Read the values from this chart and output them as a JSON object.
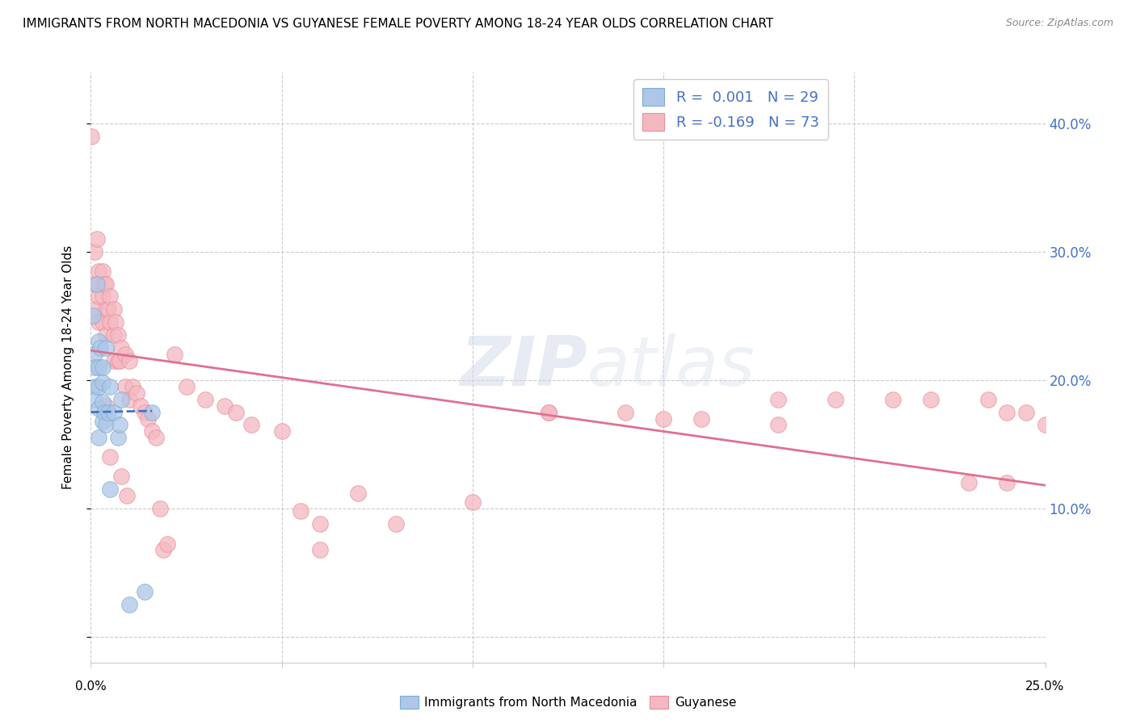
{
  "title": "IMMIGRANTS FROM NORTH MACEDONIA VS GUYANESE FEMALE POVERTY AMONG 18-24 YEAR OLDS CORRELATION CHART",
  "source": "Source: ZipAtlas.com",
  "ylabel": "Female Poverty Among 18-24 Year Olds",
  "y_ticks": [
    0.0,
    0.1,
    0.2,
    0.3,
    0.4
  ],
  "y_tick_labels": [
    "",
    "10.0%",
    "20.0%",
    "30.0%",
    "40.0%"
  ],
  "x_range": [
    0.0,
    0.25
  ],
  "y_range": [
    -0.02,
    0.44
  ],
  "blue_R": 0.001,
  "blue_N": 29,
  "pink_R": -0.169,
  "pink_N": 73,
  "blue_color": "#aec6e8",
  "pink_color": "#f4b8c1",
  "blue_edge_color": "#7aaed0",
  "pink_edge_color": "#e8909a",
  "blue_line_color": "#4472c4",
  "pink_line_color": "#e07090",
  "legend_text_color": "#4472c4",
  "watermark_zip": "ZIP",
  "watermark_atlas": "atlas",
  "blue_scatter_x": [
    0.0005,
    0.001,
    0.001,
    0.001,
    0.001,
    0.0015,
    0.002,
    0.002,
    0.002,
    0.002,
    0.002,
    0.0025,
    0.003,
    0.003,
    0.003,
    0.003,
    0.0035,
    0.004,
    0.004,
    0.0045,
    0.005,
    0.005,
    0.006,
    0.007,
    0.0075,
    0.008,
    0.01,
    0.014,
    0.016
  ],
  "blue_scatter_y": [
    0.25,
    0.22,
    0.21,
    0.195,
    0.185,
    0.275,
    0.23,
    0.21,
    0.195,
    0.178,
    0.155,
    0.225,
    0.21,
    0.198,
    0.183,
    0.168,
    0.175,
    0.225,
    0.165,
    0.175,
    0.195,
    0.115,
    0.175,
    0.155,
    0.165,
    0.185,
    0.025,
    0.035,
    0.175
  ],
  "pink_scatter_x": [
    0.0002,
    0.001,
    0.001,
    0.001,
    0.0015,
    0.002,
    0.002,
    0.002,
    0.003,
    0.003,
    0.003,
    0.0035,
    0.004,
    0.004,
    0.004,
    0.004,
    0.0045,
    0.005,
    0.005,
    0.005,
    0.006,
    0.006,
    0.006,
    0.0065,
    0.007,
    0.007,
    0.0075,
    0.008,
    0.008,
    0.009,
    0.009,
    0.0095,
    0.01,
    0.01,
    0.011,
    0.012,
    0.013,
    0.014,
    0.015,
    0.016,
    0.017,
    0.018,
    0.019,
    0.02,
    0.022,
    0.025,
    0.03,
    0.035,
    0.038,
    0.042,
    0.05,
    0.055,
    0.06,
    0.07,
    0.08,
    0.1,
    0.12,
    0.14,
    0.15,
    0.16,
    0.18,
    0.195,
    0.21,
    0.22,
    0.23,
    0.235,
    0.24,
    0.245,
    0.25,
    0.06,
    0.12,
    0.18,
    0.24
  ],
  "pink_scatter_y": [
    0.39,
    0.3,
    0.275,
    0.255,
    0.31,
    0.285,
    0.265,
    0.245,
    0.285,
    0.265,
    0.245,
    0.275,
    0.275,
    0.255,
    0.235,
    0.18,
    0.255,
    0.265,
    0.245,
    0.14,
    0.255,
    0.235,
    0.215,
    0.245,
    0.235,
    0.215,
    0.215,
    0.225,
    0.125,
    0.22,
    0.195,
    0.11,
    0.215,
    0.185,
    0.195,
    0.19,
    0.18,
    0.175,
    0.17,
    0.16,
    0.155,
    0.1,
    0.068,
    0.072,
    0.22,
    0.195,
    0.185,
    0.18,
    0.175,
    0.165,
    0.16,
    0.098,
    0.068,
    0.112,
    0.088,
    0.105,
    0.175,
    0.175,
    0.17,
    0.17,
    0.165,
    0.185,
    0.185,
    0.185,
    0.12,
    0.185,
    0.175,
    0.175,
    0.165,
    0.088,
    0.175,
    0.185,
    0.12
  ],
  "blue_trend_x": [
    0.0,
    0.016
  ],
  "blue_trend_y": [
    0.175,
    0.176
  ],
  "pink_trend_x": [
    0.0,
    0.25
  ],
  "pink_trend_y": [
    0.223,
    0.118
  ]
}
